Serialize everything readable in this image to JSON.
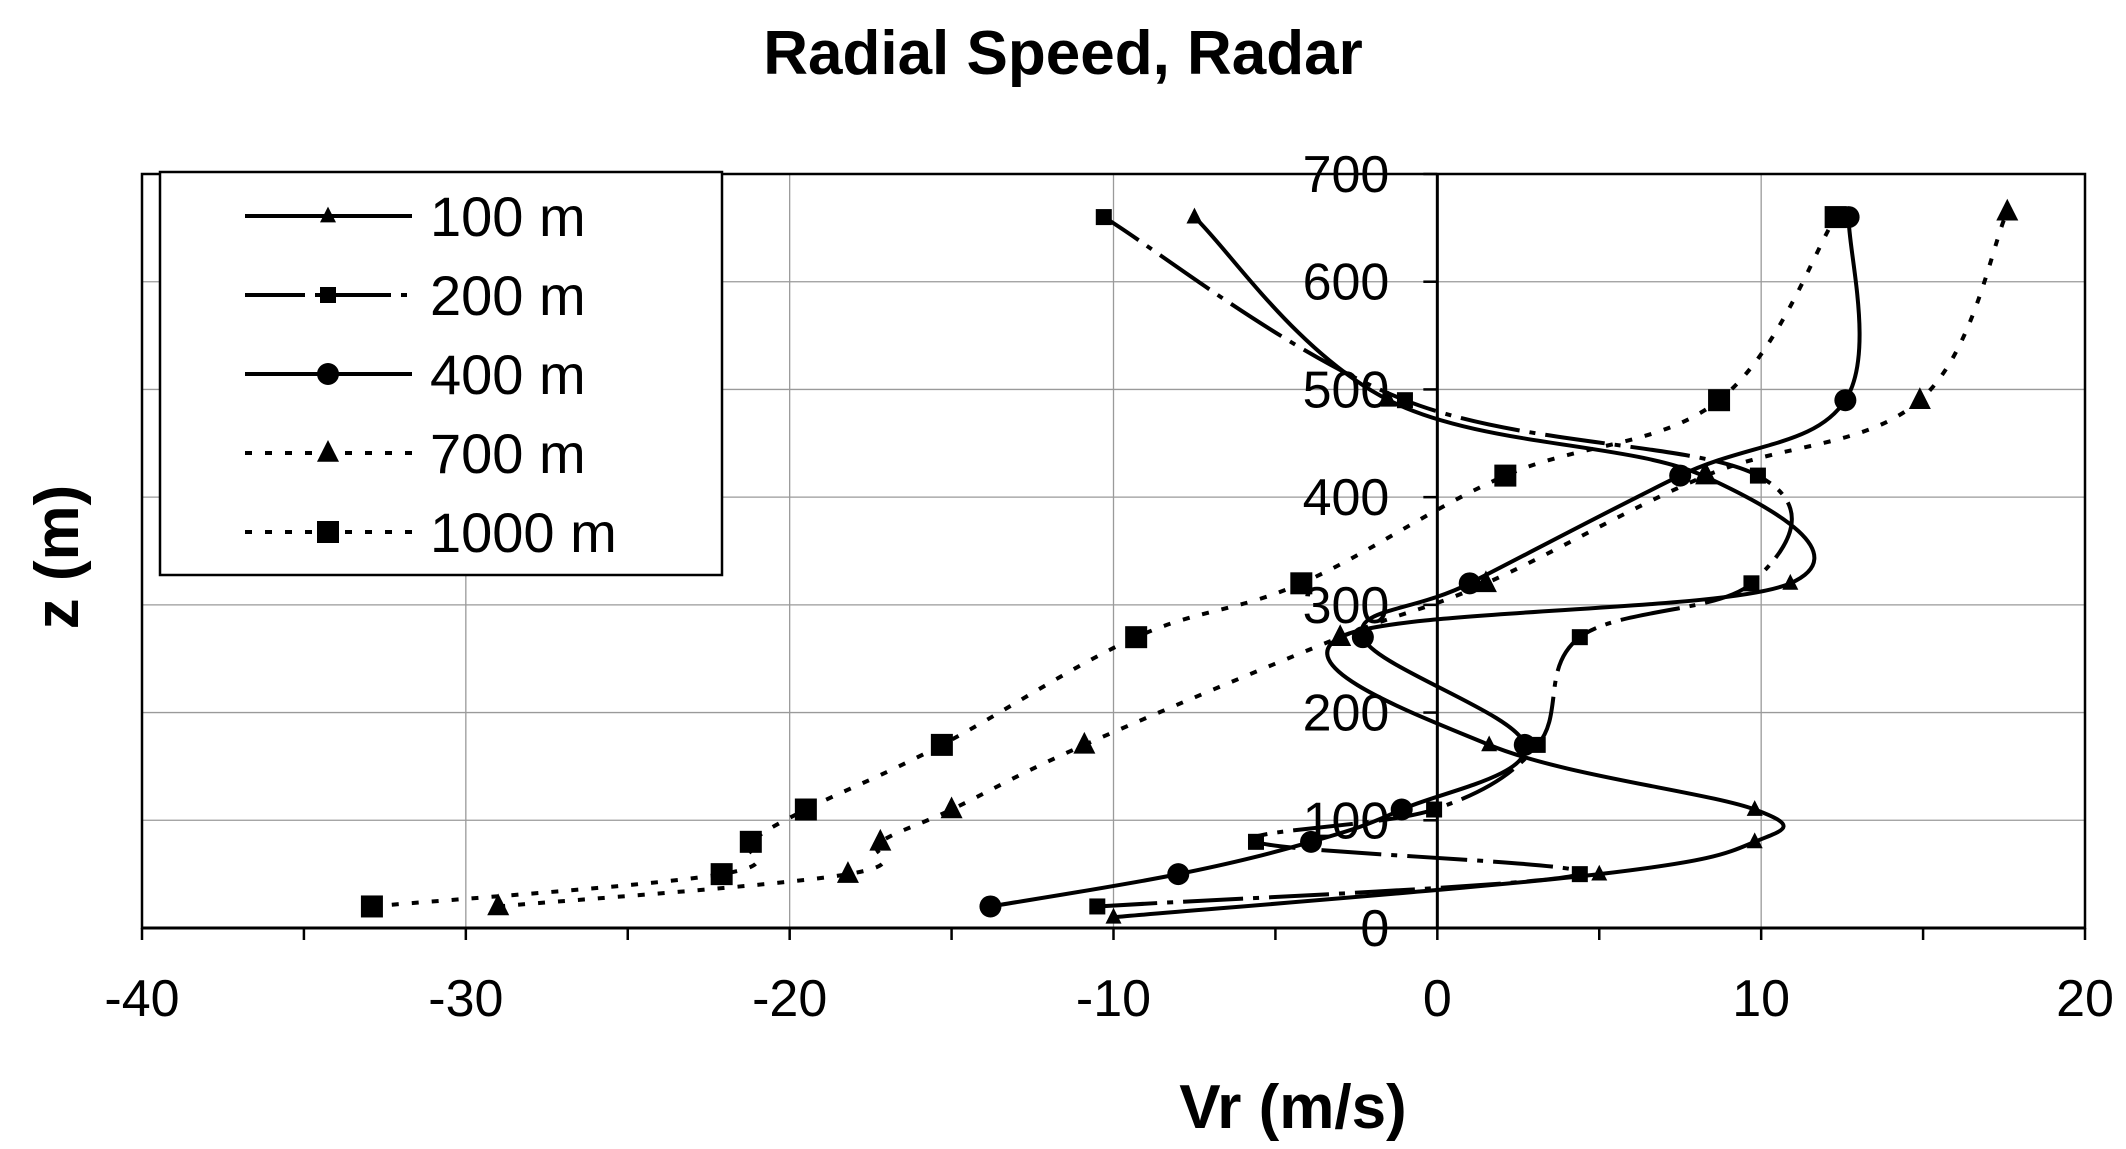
{
  "chart_data": {
    "type": "line",
    "title": "Radial Speed, Radar",
    "xlabel": "Vr (m/s)",
    "ylabel": "z (m)",
    "xlim": [
      -40,
      20
    ],
    "ylim": [
      0,
      700
    ],
    "x_ticks": [
      "-40",
      "-30",
      "-20",
      "-10",
      "0",
      "10",
      "20"
    ],
    "y_ticks": [
      "0",
      "100",
      "200",
      "300",
      "400",
      "500",
      "600",
      "700"
    ],
    "grid": true,
    "legend_position": "top-left",
    "series": [
      {
        "name": "100 m",
        "line": "solid",
        "marker": "triangle",
        "marker_size": "small",
        "points": [
          [
            -10,
            10
          ],
          [
            5,
            50
          ],
          [
            9.8,
            80
          ],
          [
            9.8,
            110
          ],
          [
            1.6,
            170
          ],
          [
            -3,
            270
          ],
          [
            10.9,
            320
          ],
          [
            8.2,
            420
          ],
          [
            -1.5,
            490
          ],
          [
            -7.5,
            660
          ]
        ]
      },
      {
        "name": "200 m",
        "line": "dash-dot",
        "marker": "square",
        "marker_size": "small",
        "points": [
          [
            -10.5,
            20
          ],
          [
            4.4,
            50
          ],
          [
            -5.6,
            80
          ],
          [
            -0.1,
            110
          ],
          [
            3.1,
            170
          ],
          [
            4.4,
            270
          ],
          [
            9.7,
            320
          ],
          [
            9.9,
            420
          ],
          [
            -1,
            490
          ],
          [
            -10.3,
            660
          ]
        ]
      },
      {
        "name": "400 m",
        "line": "solid",
        "marker": "circle",
        "marker_size": "large",
        "points": [
          [
            -13.8,
            20
          ],
          [
            -8,
            50
          ],
          [
            -3.9,
            80
          ],
          [
            -1.1,
            110
          ],
          [
            2.7,
            170
          ],
          [
            -2.3,
            270
          ],
          [
            1,
            320
          ],
          [
            7.5,
            420
          ],
          [
            12.6,
            490
          ],
          [
            12.7,
            660
          ]
        ]
      },
      {
        "name": "700 m",
        "line": "dotted",
        "marker": "triangle",
        "marker_size": "large",
        "points": [
          [
            -29,
            20
          ],
          [
            -18.2,
            50
          ],
          [
            -17.2,
            80
          ],
          [
            -15,
            110
          ],
          [
            -10.9,
            170
          ],
          [
            -3,
            270
          ],
          [
            1.5,
            320
          ],
          [
            8.3,
            420
          ],
          [
            14.9,
            490
          ],
          [
            17.6,
            665
          ]
        ]
      },
      {
        "name": "1000 m",
        "line": "dotted",
        "marker": "square",
        "marker_size": "large",
        "points": [
          [
            -32.9,
            20
          ],
          [
            -22.1,
            50
          ],
          [
            -21.2,
            80
          ],
          [
            -19.5,
            110
          ],
          [
            -15.3,
            170
          ],
          [
            -9.3,
            270
          ],
          [
            -4.2,
            320
          ],
          [
            2.1,
            420
          ],
          [
            8.7,
            490
          ],
          [
            12.3,
            660
          ]
        ]
      }
    ]
  }
}
